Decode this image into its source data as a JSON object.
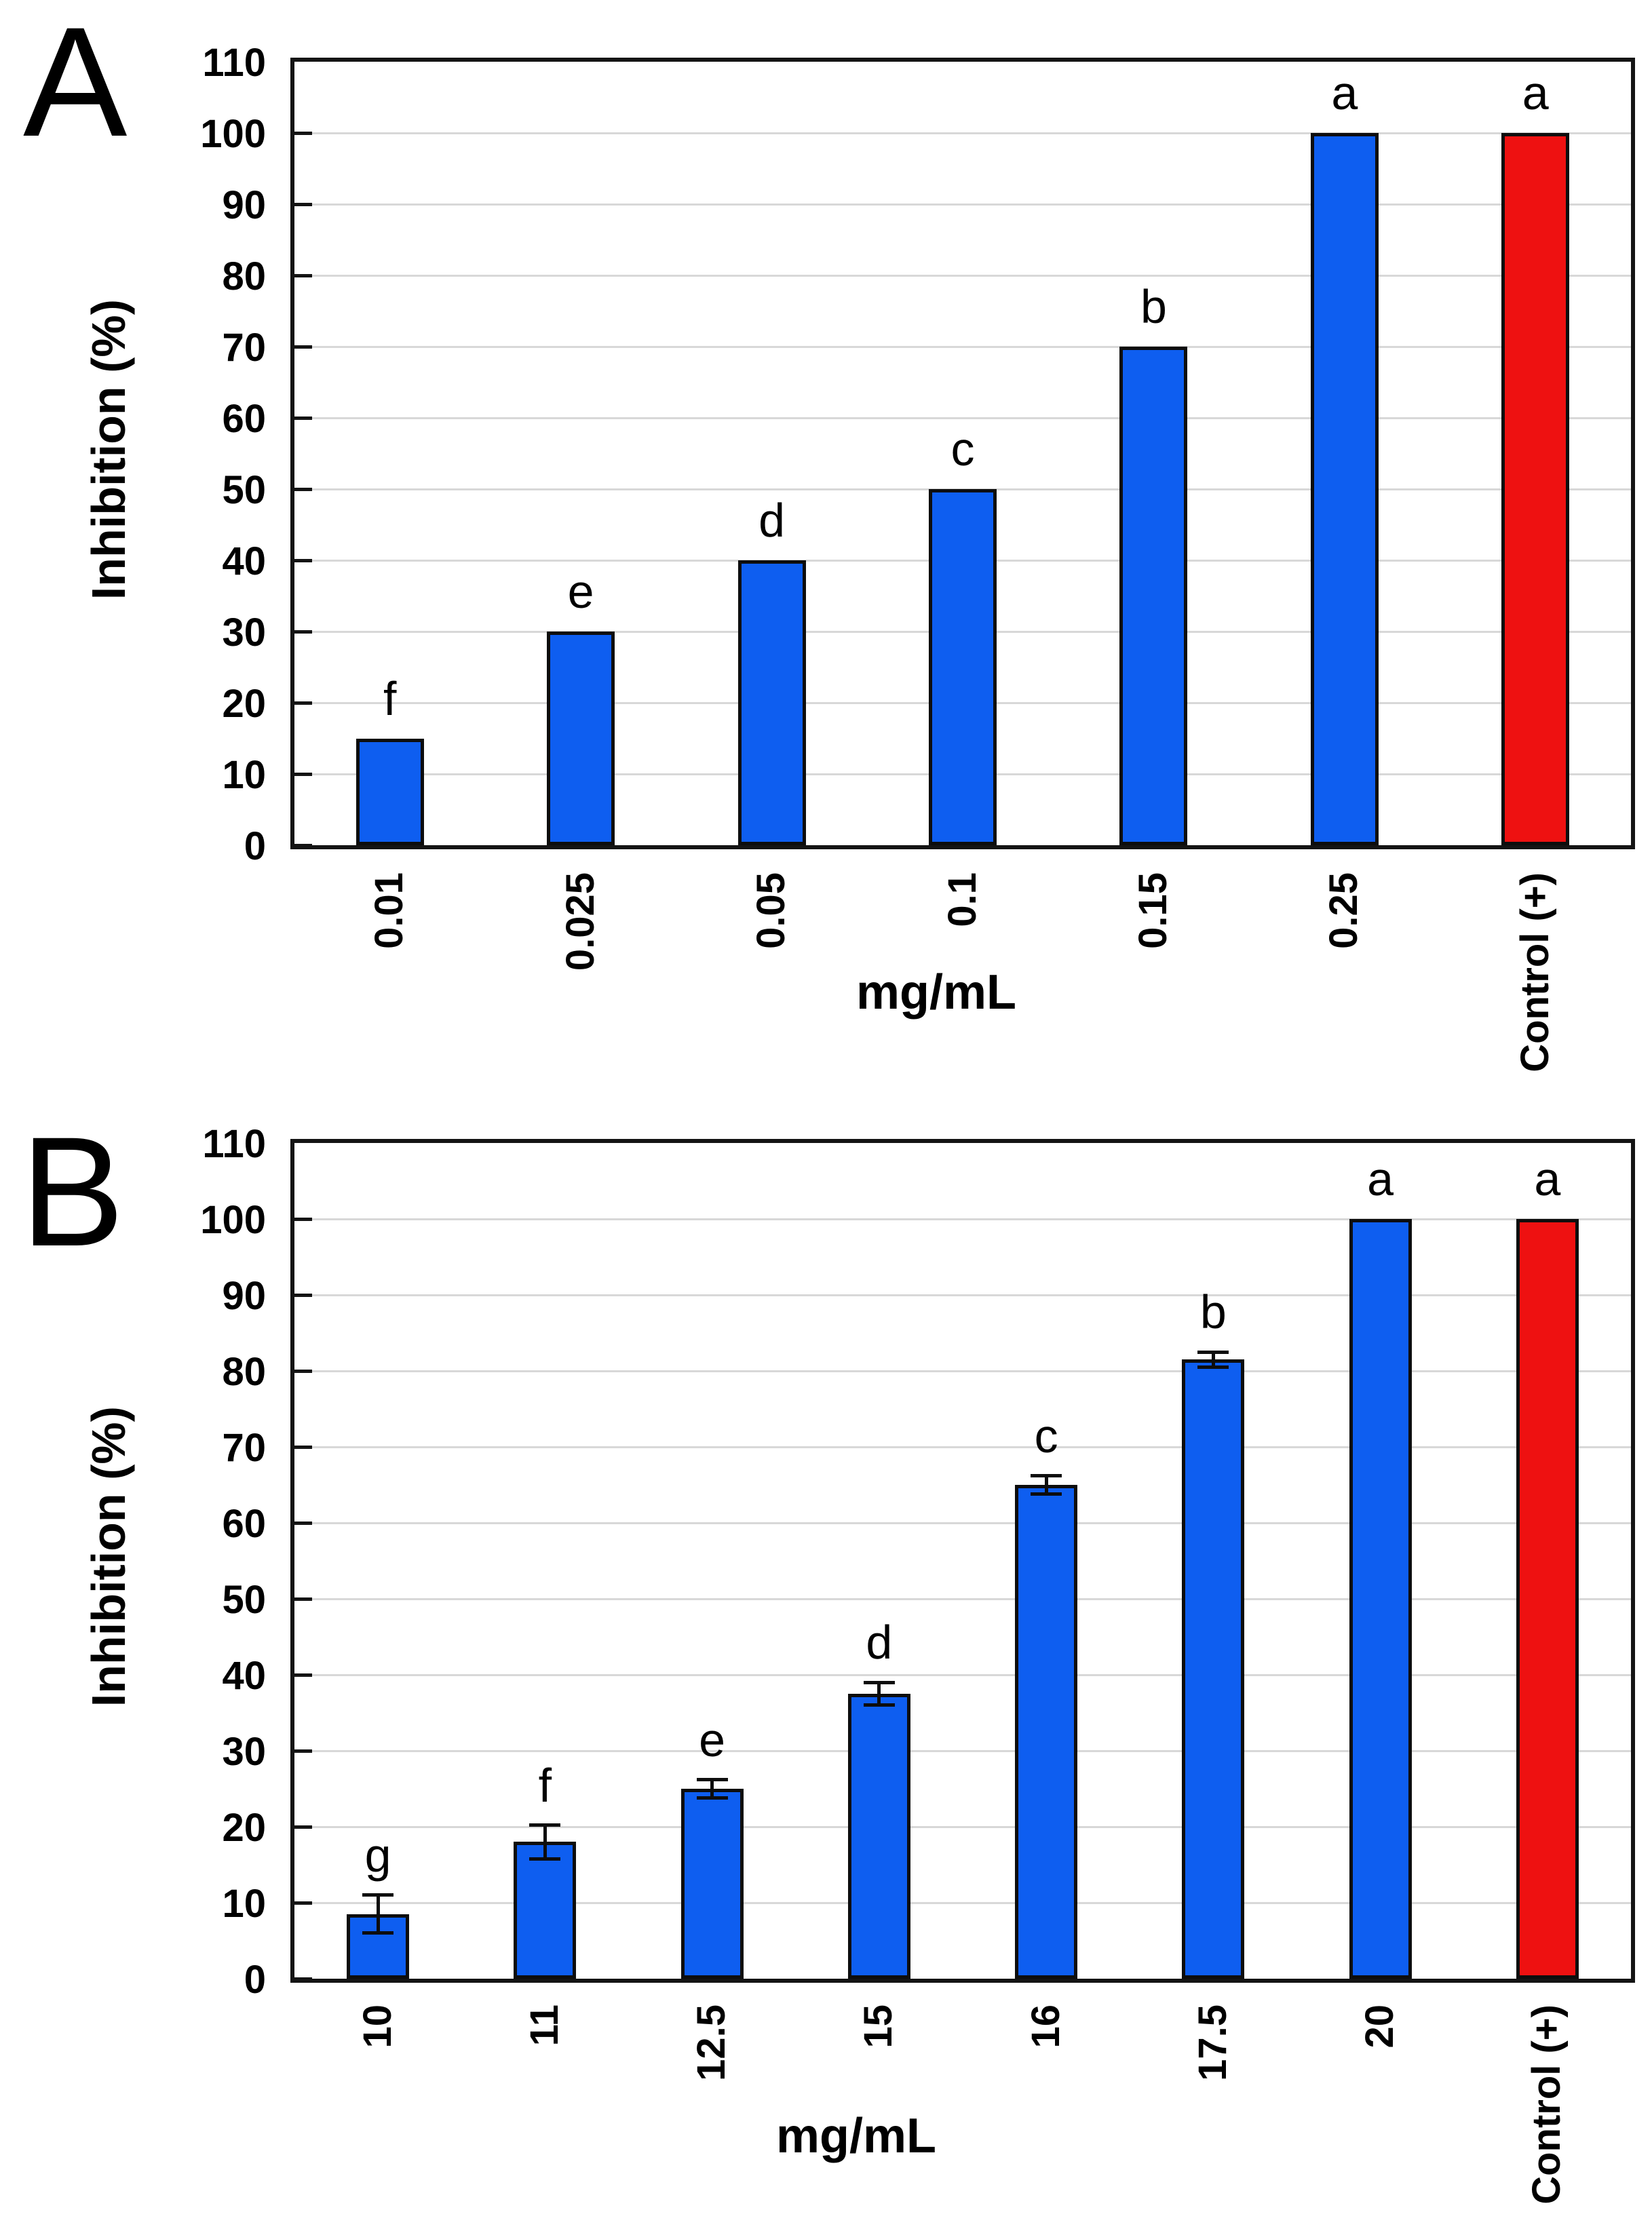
{
  "page": {
    "background": "#ffffff"
  },
  "colors": {
    "bar_blue": "#0e5ef0",
    "bar_red": "#ee1111",
    "bar_outline": "#0d0d0d",
    "grid": "#d8d8d8",
    "frame": "#141414",
    "text": "#000000"
  },
  "chart_data": [
    {
      "type": "bar",
      "panel_letter": "A",
      "ylabel": "Inhibition (%)",
      "xlabel": "mg/mL",
      "ylim": [
        0,
        110
      ],
      "ytick_step": 10,
      "ytick_labels": [
        "0",
        "10",
        "20",
        "30",
        "40",
        "50",
        "60",
        "70",
        "80",
        "90",
        "100",
        "110"
      ],
      "grid": true,
      "legend": "none",
      "categories": [
        "0.01",
        "0.025",
        "0.05",
        "0.1",
        "0.15",
        "0.25",
        "Control (+)"
      ],
      "values": [
        15,
        30,
        40,
        50,
        70,
        100,
        100
      ],
      "errors": [
        0,
        0,
        0,
        0,
        0,
        0,
        0
      ],
      "sig_letters": [
        "f",
        "e",
        "d",
        "c",
        "b",
        "a",
        "a"
      ],
      "bar_colors": [
        "blue",
        "blue",
        "blue",
        "blue",
        "blue",
        "blue",
        "red"
      ]
    },
    {
      "type": "bar",
      "panel_letter": "B",
      "ylabel": "Inhibition (%)",
      "xlabel": "mg/mL",
      "ylim": [
        0,
        110
      ],
      "ytick_step": 10,
      "ytick_labels": [
        "0",
        "10",
        "20",
        "30",
        "40",
        "50",
        "60",
        "70",
        "80",
        "90",
        "100",
        "110"
      ],
      "grid": true,
      "legend": "none",
      "categories": [
        "10",
        "11",
        "12.5",
        "15",
        "16",
        "17.5",
        "20",
        "Control (+)"
      ],
      "values": [
        8.5,
        18,
        25,
        37.5,
        65,
        81.5,
        100,
        100
      ],
      "errors": [
        2.5,
        2.2,
        1.2,
        1.5,
        1.2,
        1.0,
        0,
        0
      ],
      "sig_letters": [
        "g",
        "f",
        "e",
        "d",
        "c",
        "b",
        "a",
        "a"
      ],
      "bar_colors": [
        "blue",
        "blue",
        "blue",
        "blue",
        "blue",
        "blue",
        "blue",
        "red"
      ]
    }
  ]
}
